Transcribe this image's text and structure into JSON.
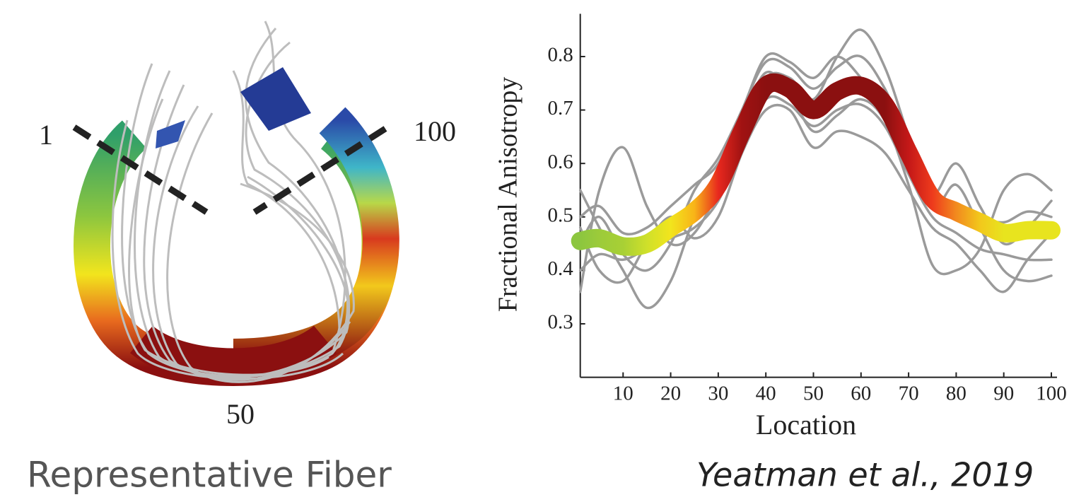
{
  "figure": {
    "start_label": "1",
    "end_label": "100",
    "middle_label": "50",
    "caption": "Representative Fiber"
  },
  "citation": "Yeatman et al., 2019",
  "chart_data": {
    "type": "line",
    "x_label": "Location",
    "y_label": "Fractional Anisotropy",
    "x": [
      1,
      5,
      10,
      15,
      20,
      25,
      30,
      35,
      40,
      45,
      50,
      55,
      60,
      65,
      70,
      75,
      80,
      85,
      90,
      95,
      100
    ],
    "xlim": [
      1,
      100
    ],
    "xticks": [
      10,
      20,
      30,
      40,
      50,
      60,
      70,
      80,
      90,
      100
    ],
    "ylim": [
      0.2,
      0.88
    ],
    "yticks": [
      0.3,
      0.4,
      0.5,
      0.6,
      0.7,
      0.8
    ],
    "series": [
      {
        "color": "#9a9a9a",
        "values": [
          0.5,
          0.52,
          0.47,
          0.48,
          0.52,
          0.56,
          0.6,
          0.7,
          0.79,
          0.78,
          0.74,
          0.78,
          0.8,
          0.74,
          0.64,
          0.55,
          0.52,
          0.5,
          0.49,
          0.51,
          0.5
        ]
      },
      {
        "color": "#9a9a9a",
        "values": [
          0.4,
          0.43,
          0.42,
          0.44,
          0.46,
          0.48,
          0.53,
          0.63,
          0.72,
          0.71,
          0.67,
          0.7,
          0.71,
          0.67,
          0.58,
          0.5,
          0.47,
          0.44,
          0.43,
          0.42,
          0.42
        ]
      },
      {
        "color": "#9a9a9a",
        "values": [
          0.36,
          0.55,
          0.63,
          0.52,
          0.45,
          0.47,
          0.55,
          0.66,
          0.76,
          0.76,
          0.72,
          0.8,
          0.85,
          0.78,
          0.65,
          0.52,
          0.56,
          0.48,
          0.4,
          0.38,
          0.39
        ]
      },
      {
        "color": "#9a9a9a",
        "values": [
          0.55,
          0.48,
          0.4,
          0.33,
          0.38,
          0.5,
          0.58,
          0.68,
          0.77,
          0.73,
          0.66,
          0.69,
          0.72,
          0.68,
          0.56,
          0.41,
          0.4,
          0.44,
          0.55,
          0.58,
          0.55
        ]
      },
      {
        "color": "#9a9a9a",
        "values": [
          0.45,
          0.5,
          0.43,
          0.4,
          0.45,
          0.55,
          0.61,
          0.7,
          0.8,
          0.79,
          0.76,
          0.8,
          0.76,
          0.7,
          0.6,
          0.54,
          0.6,
          0.52,
          0.45,
          0.48,
          0.53
        ]
      },
      {
        "color": "#9a9a9a",
        "values": [
          0.48,
          0.4,
          0.38,
          0.45,
          0.5,
          0.46,
          0.5,
          0.62,
          0.7,
          0.7,
          0.63,
          0.66,
          0.65,
          0.62,
          0.55,
          0.48,
          0.45,
          0.4,
          0.36,
          0.42,
          0.47
        ]
      },
      {
        "colors": [
          "#8cc63f",
          "#9ccb3a",
          "#a8d035",
          "#cfe02a",
          "#f2e51d",
          "#f8b418",
          "#e8281e",
          "#a01212",
          "#8b1010",
          "#8b1010",
          "#8b1010",
          "#8b1010",
          "#8b1010",
          "#8b1010",
          "#c41818",
          "#ee3a1c",
          "#f28a1e",
          "#f2c81c",
          "#e8e41e",
          "#e8e41e",
          "#e8e41e"
        ],
        "values": [
          0.455,
          0.46,
          0.445,
          0.45,
          0.48,
          0.51,
          0.56,
          0.66,
          0.745,
          0.74,
          0.7,
          0.735,
          0.745,
          0.71,
          0.62,
          0.535,
          0.51,
          0.49,
          0.47,
          0.475,
          0.475
        ]
      }
    ]
  }
}
